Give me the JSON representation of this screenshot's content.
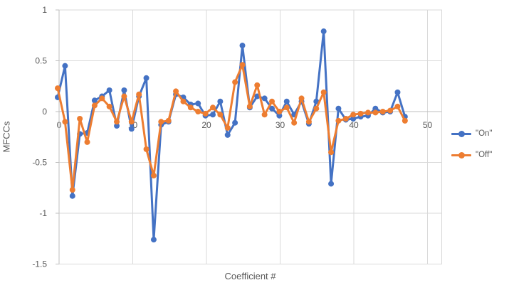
{
  "chart_data": {
    "type": "line",
    "title": "",
    "xlabel": "Coefficient #",
    "ylabel": "MFCCs",
    "x_ticks": [
      0,
      10,
      20,
      30,
      40,
      50
    ],
    "y_ticks": [
      "1",
      "0.5",
      "0",
      "-0.5",
      "-1",
      "-1.5"
    ],
    "y_tick_values": [
      1,
      0.5,
      0,
      -0.5,
      -1,
      -1.5
    ],
    "xlim": [
      0,
      52
    ],
    "ylim": [
      -1.5,
      1
    ],
    "grid": true,
    "legend_position": "right",
    "categories": [
      0,
      1,
      2,
      3,
      4,
      5,
      6,
      7,
      8,
      9,
      10,
      11,
      12,
      13,
      14,
      15,
      16,
      17,
      18,
      19,
      20,
      21,
      22,
      23,
      24,
      25,
      26,
      27,
      28,
      29,
      30,
      31,
      32,
      33,
      34,
      35,
      36,
      37,
      38,
      39,
      40,
      41,
      42,
      43,
      44,
      45,
      46,
      47
    ],
    "series": [
      {
        "name": "\"On\"",
        "color": "#4472C4",
        "values": [
          0.14,
          0.45,
          -0.83,
          -0.22,
          -0.21,
          0.11,
          0.15,
          0.21,
          -0.14,
          0.21,
          -0.17,
          0.15,
          0.33,
          -1.26,
          -0.13,
          -0.1,
          0.17,
          0.14,
          0.07,
          0.08,
          -0.04,
          -0.03,
          0.1,
          -0.23,
          -0.11,
          0.65,
          0.04,
          0.15,
          0.13,
          0.03,
          -0.04,
          0.1,
          -0.03,
          0.1,
          -0.12,
          0.1,
          0.79,
          -0.71,
          0.03,
          -0.08,
          -0.07,
          -0.05,
          -0.04,
          0.03,
          -0.01,
          0.0,
          0.19,
          -0.05
        ]
      },
      {
        "name": "\"Off\"",
        "color": "#ED7D31",
        "values": [
          0.23,
          -0.1,
          -0.77,
          -0.07,
          -0.3,
          0.06,
          0.13,
          0.05,
          -0.1,
          0.15,
          -0.1,
          0.17,
          -0.37,
          -0.63,
          -0.1,
          -0.09,
          0.2,
          0.1,
          0.04,
          0.0,
          -0.02,
          0.04,
          -0.03,
          -0.16,
          0.29,
          0.46,
          0.05,
          0.26,
          -0.03,
          0.1,
          0.0,
          0.04,
          -0.11,
          0.13,
          -0.1,
          0.03,
          0.19,
          -0.4,
          -0.09,
          -0.07,
          -0.03,
          -0.02,
          -0.01,
          -0.01,
          0.0,
          0.01,
          0.05,
          -0.09
        ]
      }
    ],
    "colors": {
      "gridline": "#D9D9D9",
      "axis_line": "#BFBFBF",
      "tick_label": "#595959",
      "axis_title": "#595959",
      "background": "#FFFFFF"
    }
  }
}
